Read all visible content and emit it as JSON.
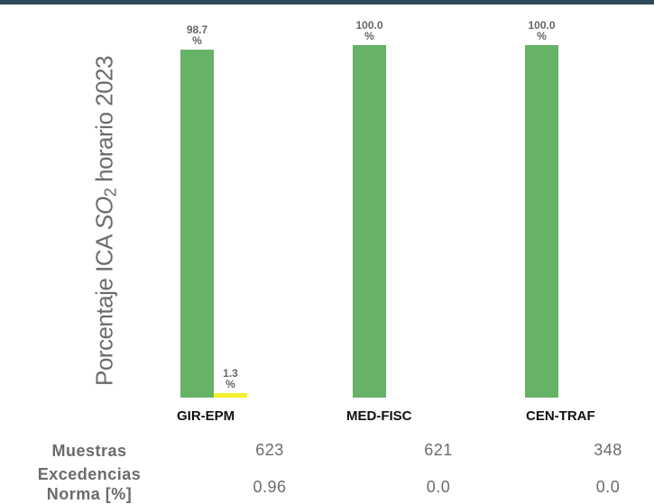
{
  "colors": {
    "top_line": "#2f4a5a",
    "green": "#66b266",
    "yellow": "#f2ef2a",
    "text_gray": "#6b6b6b"
  },
  "chart_data": {
    "type": "bar",
    "ylabel_prefix": "Porcentaje ICA ",
    "ylabel_formula": "SO",
    "ylabel_sub": "2",
    "ylabel_suffix": " horario 2023",
    "categories": [
      "GIR-EPM",
      "MED-FISC",
      "CEN-TRAF"
    ],
    "series": [
      {
        "color": "#66b266",
        "values": [
          98.7,
          100.0,
          100.0
        ],
        "labels": [
          "98.7\n%",
          "100.0\n%",
          "100.0\n%"
        ]
      },
      {
        "color": "#f2ef2a",
        "values": [
          1.3,
          0,
          0
        ],
        "labels": [
          "1.3\n%",
          "",
          ""
        ]
      }
    ],
    "ylim": [
      0,
      100
    ]
  },
  "table": {
    "rows": [
      {
        "label": "Muestras",
        "values": [
          "623",
          "621",
          "348"
        ]
      },
      {
        "label": "Excedencias\nNorma [%]",
        "values": [
          "0.96",
          "0.0",
          "0.0"
        ]
      }
    ]
  }
}
